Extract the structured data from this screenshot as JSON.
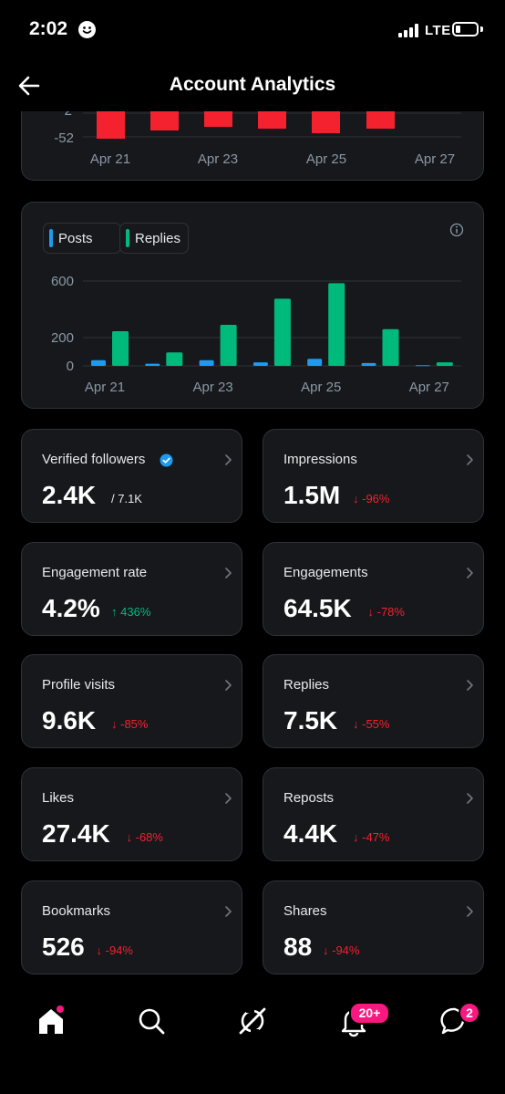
{
  "status": {
    "time": "2:02",
    "network": "LTE"
  },
  "header": {
    "title": "Account Analytics"
  },
  "top_chart": {
    "yticks": [
      "2",
      "-52"
    ],
    "xticks": [
      "Apr 21",
      "Apr 23",
      "Apr 25",
      "Apr 27"
    ],
    "bar_color": "#f4212e"
  },
  "chart_data": {
    "type": "bar",
    "categories": [
      "Apr 21",
      "Apr 22",
      "Apr 23",
      "Apr 24",
      "Apr 25",
      "Apr 26",
      "Apr 27"
    ],
    "xticks": [
      "Apr 21",
      "Apr 23",
      "Apr 25",
      "Apr 27"
    ],
    "yticks": [
      0,
      200,
      600
    ],
    "ylim": [
      0,
      600
    ],
    "legend": "top-left",
    "grid": true,
    "series": [
      {
        "name": "Posts",
        "color": "#1d9bf0",
        "values": [
          40,
          15,
          40,
          25,
          50,
          20,
          5
        ]
      },
      {
        "name": "Replies",
        "color": "#00ba7c",
        "values": [
          245,
          95,
          290,
          475,
          585,
          260,
          25
        ]
      }
    ]
  },
  "metrics": [
    {
      "title": "Verified followers",
      "value": "2.4K",
      "sub": "/ 7.1K",
      "change": "",
      "direction": "",
      "verified_icon": true
    },
    {
      "title": "Impressions",
      "value": "1.5M",
      "change": "-96%",
      "direction": "down"
    },
    {
      "title": "Engagement rate",
      "value": "4.2%",
      "change": "436%",
      "direction": "up"
    },
    {
      "title": "Engagements",
      "value": "64.5K",
      "change": "-78%",
      "direction": "down"
    },
    {
      "title": "Profile visits",
      "value": "9.6K",
      "change": "-85%",
      "direction": "down"
    },
    {
      "title": "Replies",
      "value": "7.5K",
      "change": "-55%",
      "direction": "down"
    },
    {
      "title": "Likes",
      "value": "27.4K",
      "change": "-68%",
      "direction": "down"
    },
    {
      "title": "Reposts",
      "value": "4.4K",
      "change": "-47%",
      "direction": "down"
    },
    {
      "title": "Bookmarks",
      "value": "526",
      "change": "-94%",
      "direction": "down"
    },
    {
      "title": "Shares",
      "value": "88",
      "change": "-94%",
      "direction": "down"
    }
  ],
  "colors": {
    "up": "#00ba7c",
    "down": "#f4212e",
    "accent": "#1d9bf0",
    "badge": "#f91880"
  },
  "tabbar": {
    "items": [
      {
        "name": "home",
        "icon": "home-icon"
      },
      {
        "name": "search",
        "icon": "search-icon"
      },
      {
        "name": "grok",
        "icon": "grok-icon"
      },
      {
        "name": "notifications",
        "icon": "bell-icon",
        "badge": "20+"
      },
      {
        "name": "messages",
        "icon": "message-icon",
        "badge": "2"
      }
    ]
  }
}
